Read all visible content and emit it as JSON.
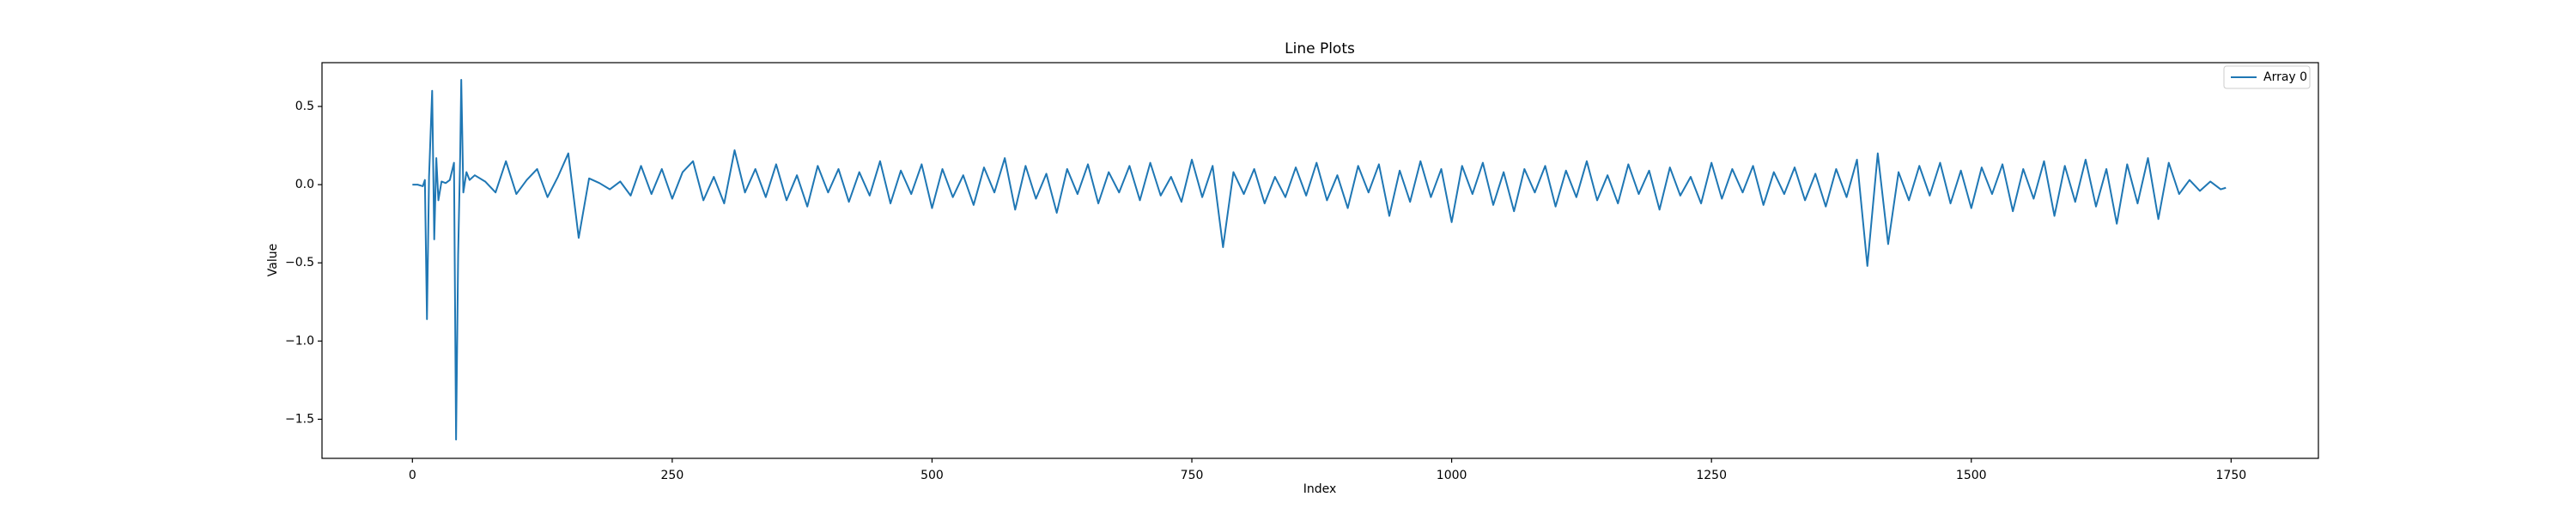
{
  "chart_data": {
    "type": "line",
    "title": "Line Plots",
    "x_label": "Index",
    "y_label": "Value",
    "xlim": [
      -87,
      1834
    ],
    "ylim": [
      -1.75,
      0.78
    ],
    "xticks": [
      0,
      250,
      500,
      750,
      1000,
      1250,
      1500,
      1750
    ],
    "yticks": [
      {
        "value": -1.5,
        "label": "−1.5"
      },
      {
        "value": -1.0,
        "label": "−1.0"
      },
      {
        "value": -0.5,
        "label": "−0.5"
      },
      {
        "value": 0.0,
        "label": "0.0"
      },
      {
        "value": 0.5,
        "label": "0.5"
      }
    ],
    "grid": false,
    "legend": "upper right",
    "x": [
      0,
      5,
      10,
      12,
      14,
      16,
      19,
      21,
      23,
      25,
      28,
      32,
      36,
      40,
      42,
      44,
      46,
      47,
      49,
      52,
      55,
      60,
      70,
      80,
      90,
      100,
      110,
      120,
      130,
      140,
      150,
      160,
      170,
      180,
      190,
      200,
      210,
      220,
      230,
      240,
      250,
      260,
      270,
      280,
      290,
      300,
      310,
      320,
      330,
      340,
      350,
      360,
      370,
      380,
      390,
      400,
      410,
      420,
      430,
      440,
      450,
      460,
      470,
      480,
      490,
      500,
      510,
      520,
      530,
      540,
      550,
      560,
      570,
      580,
      590,
      600,
      610,
      620,
      630,
      640,
      650,
      660,
      670,
      680,
      690,
      700,
      710,
      720,
      730,
      740,
      750,
      760,
      770,
      780,
      790,
      800,
      810,
      820,
      830,
      840,
      850,
      860,
      870,
      880,
      890,
      900,
      910,
      920,
      930,
      940,
      950,
      960,
      970,
      980,
      990,
      1000,
      1010,
      1020,
      1030,
      1040,
      1050,
      1060,
      1070,
      1080,
      1090,
      1100,
      1110,
      1120,
      1130,
      1140,
      1150,
      1160,
      1170,
      1180,
      1190,
      1200,
      1210,
      1220,
      1230,
      1240,
      1250,
      1260,
      1270,
      1280,
      1290,
      1300,
      1310,
      1320,
      1330,
      1340,
      1350,
      1360,
      1370,
      1380,
      1390,
      1400,
      1410,
      1420,
      1430,
      1440,
      1450,
      1460,
      1470,
      1480,
      1490,
      1500,
      1510,
      1520,
      1530,
      1540,
      1550,
      1560,
      1570,
      1580,
      1590,
      1600,
      1610,
      1620,
      1630,
      1640,
      1650,
      1660,
      1670,
      1680,
      1690,
      1700,
      1710,
      1720,
      1730,
      1740,
      1745
    ],
    "series": [
      {
        "name": "Array 0",
        "color": "#1f77b4",
        "values": [
          0,
          0,
          -0.01,
          0.03,
          -0.86,
          0.05,
          0.6,
          -0.35,
          0.17,
          -0.1,
          0.02,
          0.01,
          0.03,
          0.14,
          -1.63,
          -0.45,
          0.2,
          0.67,
          -0.05,
          0.08,
          0.03,
          0.06,
          0.02,
          -0.05,
          0.15,
          -0.06,
          0.03,
          0.1,
          -0.08,
          0.05,
          0.2,
          -0.34,
          0.04,
          0.01,
          -0.03,
          0.02,
          -0.07,
          0.12,
          -0.06,
          0.1,
          -0.09,
          0.08,
          0.15,
          -0.1,
          0.05,
          -0.12,
          0.22,
          -0.05,
          0.1,
          -0.08,
          0.13,
          -0.1,
          0.06,
          -0.14,
          0.12,
          -0.05,
          0.1,
          -0.11,
          0.08,
          -0.07,
          0.15,
          -0.12,
          0.09,
          -0.06,
          0.13,
          -0.15,
          0.1,
          -0.08,
          0.06,
          -0.13,
          0.11,
          -0.05,
          0.17,
          -0.16,
          0.12,
          -0.09,
          0.07,
          -0.18,
          0.1,
          -0.06,
          0.13,
          -0.12,
          0.08,
          -0.05,
          0.12,
          -0.1,
          0.14,
          -0.07,
          0.05,
          -0.11,
          0.16,
          -0.08,
          0.12,
          -0.4,
          0.08,
          -0.06,
          0.1,
          -0.12,
          0.05,
          -0.08,
          0.11,
          -0.07,
          0.14,
          -0.1,
          0.06,
          -0.15,
          0.12,
          -0.05,
          0.13,
          -0.2,
          0.09,
          -0.11,
          0.15,
          -0.08,
          0.1,
          -0.24,
          0.12,
          -0.06,
          0.14,
          -0.13,
          0.08,
          -0.17,
          0.1,
          -0.05,
          0.12,
          -0.14,
          0.09,
          -0.08,
          0.15,
          -0.1,
          0.06,
          -0.12,
          0.13,
          -0.06,
          0.09,
          -0.16,
          0.11,
          -0.07,
          0.05,
          -0.12,
          0.14,
          -0.09,
          0.1,
          -0.05,
          0.12,
          -0.13,
          0.08,
          -0.06,
          0.11,
          -0.1,
          0.07,
          -0.14,
          0.1,
          -0.08,
          0.16,
          -0.52,
          0.2,
          -0.38,
          0.08,
          -0.1,
          0.12,
          -0.07,
          0.14,
          -0.12,
          0.09,
          -0.15,
          0.11,
          -0.06,
          0.13,
          -0.17,
          0.1,
          -0.09,
          0.15,
          -0.2,
          0.12,
          -0.11,
          0.16,
          -0.14,
          0.1,
          -0.25,
          0.13,
          -0.12,
          0.17,
          -0.22,
          0.14,
          -0.06,
          0.03,
          -0.04,
          0.02,
          -0.03,
          -0.02
        ]
      }
    ]
  }
}
